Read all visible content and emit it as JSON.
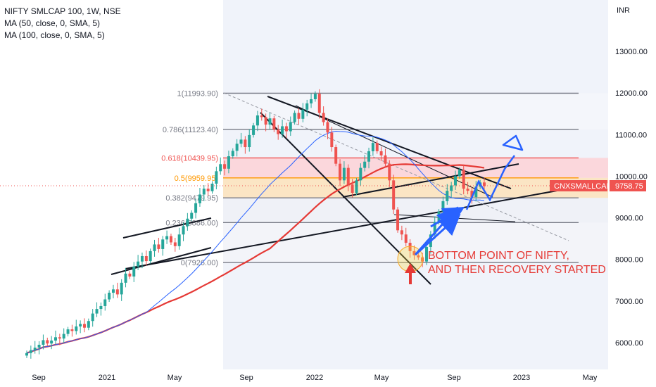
{
  "legend": {
    "symbol": "NIFTY SMLCAP 100, 1W, NSE",
    "ma1": "MA (50, close, 0, SMA, 5)",
    "ma2": "MA (100, close, 0, SMA, 5)"
  },
  "colors": {
    "up": "#26a69a",
    "down": "#ef5350",
    "ma50": "#2962ff",
    "ma100": "#e53935",
    "drawing": "#131722",
    "annotation_arrow": "#2962ff",
    "annotation_text": "#e53935",
    "price_tag_bg": "#ef5350"
  },
  "chart_data": {
    "type": "candlestick",
    "currency": "INR",
    "yticks": [
      6000,
      7000,
      8000,
      9000,
      10000,
      11000,
      12000,
      13000
    ],
    "ytick_labels": [
      "6000.00",
      "7000.00",
      "8000.00",
      "9000.00",
      "10000.00",
      "11000.00",
      "12000.00",
      "13000.00"
    ],
    "xtick_labels": [
      "Sep",
      "2021",
      "May",
      "Sep",
      "2022",
      "May",
      "Sep",
      "2023",
      "May"
    ],
    "last_price": "9758.75",
    "last_price_label": "CNXSMALLCAP",
    "fibonacci": {
      "levels": [
        {
          "label": "1(11993.90)",
          "value": 11993.9
        },
        {
          "label": "0.786(11123.40)",
          "value": 11123.4
        },
        {
          "label": "0.618(10439.95)",
          "value": 10439.95
        },
        {
          "label": "0.5(9959.95)",
          "value": 9959.95
        },
        {
          "label": "0.382(9479.95)",
          "value": 9479.95
        },
        {
          "label": "0.236(8886.00)",
          "value": 8886.0
        },
        {
          "label": "0(7926.00)",
          "value": 7926.0
        }
      ]
    },
    "annotation_line1": "BOTTOM POINT OF NIFTY,",
    "annotation_line2": "AND THEN RECOVERY STARTED",
    "closes": [
      5750,
      5820,
      5880,
      5950,
      6060,
      5980,
      6050,
      6130,
      6100,
      6210,
      6320,
      6280,
      6390,
      6450,
      6360,
      6520,
      6700,
      6810,
      6880,
      7040,
      7200,
      7280,
      7160,
      7440,
      7660,
      7590,
      7830,
      7950,
      8080,
      7960,
      8200,
      8360,
      8250,
      8480,
      8560,
      8410,
      8320,
      8600,
      8800,
      8980,
      9120,
      9350,
      9560,
      9700,
      9640,
      9820,
      10120,
      10290,
      10180,
      10480,
      10610,
      10780,
      10880,
      10700,
      10990,
      11220,
      11460,
      11420,
      11240,
      11390,
      11120,
      11010,
      11200,
      11080,
      11300,
      11520,
      11380,
      11600,
      11750,
      11850,
      11980,
      11520,
      11300,
      11050,
      10700,
      10300,
      9900,
      10200,
      9800,
      9600,
      9900,
      10200,
      10350,
      10600,
      10800,
      10600,
      10500,
      10300,
      9900,
      9200,
      8700,
      8600,
      8400,
      8200,
      8100,
      8050,
      7950,
      8300,
      8600,
      8900,
      9150,
      9400,
      9650,
      9780,
      10000,
      10150,
      9700,
      9650,
      9500,
      9750,
      9850,
      9760
    ]
  }
}
